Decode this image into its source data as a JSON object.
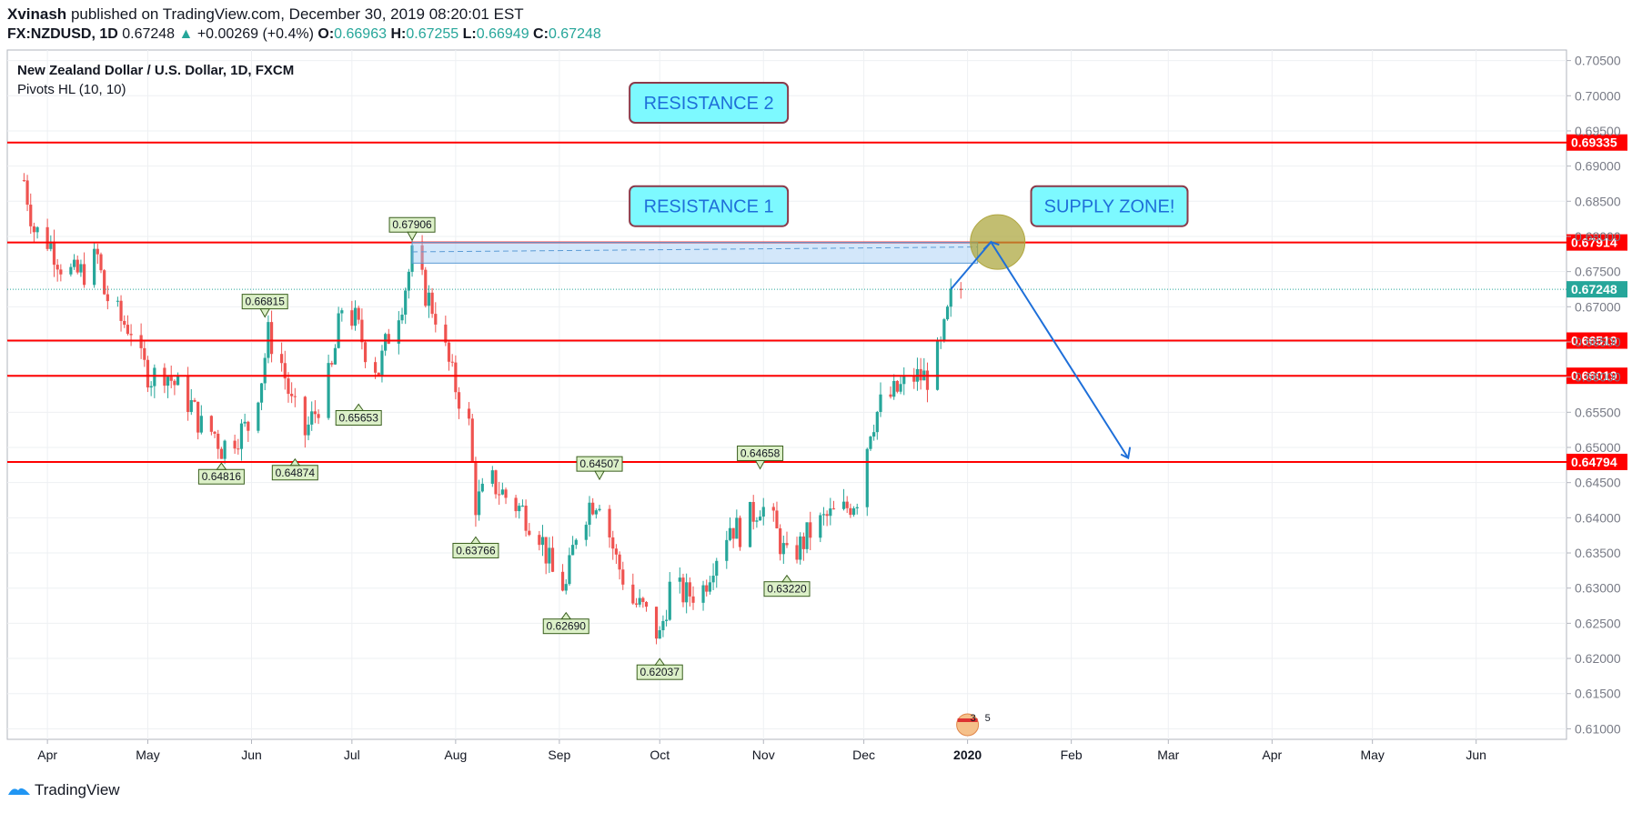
{
  "header": {
    "author": "Xvinash",
    "published": "published on TradingView.com, December 30, 2019 08:20:01 EST",
    "symbol": "FX:NZDUSD, 1D",
    "last": "0.67248",
    "change": "+0.00269 (+0.4%)",
    "o_label": "O:",
    "o": "0.66963",
    "h_label": "H:",
    "h": "0.67255",
    "l_label": "L:",
    "l": "0.66949",
    "c_label": "C:",
    "c": "0.67248"
  },
  "legend": {
    "title": "New Zealand Dollar / U.S. Dollar, 1D, FXCM",
    "indicator": "Pivots HL (10, 10)"
  },
  "footer": {
    "brand": "TradingView"
  },
  "colors": {
    "up": "#26a69a",
    "down": "#ef5350",
    "level": "#ff0000",
    "box": "#7df9ff",
    "arrow": "#1e6fd9"
  },
  "chart_data": {
    "type": "candlestick",
    "x_ticks": [
      "Apr",
      "May",
      "Jun",
      "Jul",
      "Aug",
      "Sep",
      "Oct",
      "Nov",
      "Dec",
      "2020",
      "Feb",
      "Mar",
      "Apr",
      "May",
      "Jun"
    ],
    "y_ticks": [
      "0.70500",
      "0.70000",
      "0.69500",
      "0.69000",
      "0.68500",
      "0.68000",
      "0.67500",
      "0.67000",
      "0.66500",
      "0.66000",
      "0.65500",
      "0.65000",
      "0.64500",
      "0.64000",
      "0.63500",
      "0.63000",
      "0.62500",
      "0.62000",
      "0.61500",
      "0.61000"
    ],
    "ylim": [
      0.6085,
      0.7065
    ],
    "last_price": "0.67248",
    "levels": [
      {
        "value": 0.69335,
        "label": "0.69335"
      },
      {
        "value": 0.67914,
        "label": "0.67914"
      },
      {
        "value": 0.66519,
        "label": "0.66519"
      },
      {
        "value": 0.66019,
        "label": "0.66019"
      },
      {
        "value": 0.64794,
        "label": "0.64794"
      }
    ],
    "pivots": [
      {
        "date": "2019-05-23",
        "value": 0.64816,
        "label": "0.64816",
        "kind": "low"
      },
      {
        "date": "2019-06-05",
        "value": 0.66815,
        "label": "0.66815",
        "kind": "high"
      },
      {
        "date": "2019-06-14",
        "value": 0.64874,
        "label": "0.64874",
        "kind": "low"
      },
      {
        "date": "2019-07-03",
        "value": 0.65653,
        "label": "0.65653",
        "kind": "low"
      },
      {
        "date": "2019-07-19",
        "value": 0.67906,
        "label": "0.67906",
        "kind": "high"
      },
      {
        "date": "2019-08-07",
        "value": 0.63766,
        "label": "0.63766",
        "kind": "low"
      },
      {
        "date": "2019-09-03",
        "value": 0.6269,
        "label": "0.62690",
        "kind": "low"
      },
      {
        "date": "2019-09-13",
        "value": 0.64507,
        "label": "0.64507",
        "kind": "high"
      },
      {
        "date": "2019-10-01",
        "value": 0.62037,
        "label": "0.62037",
        "kind": "low"
      },
      {
        "date": "2019-10-31",
        "value": 0.64658,
        "label": "0.64658",
        "kind": "high"
      },
      {
        "date": "2019-11-08",
        "value": 0.6322,
        "label": "0.63220",
        "kind": "low"
      }
    ],
    "annotations": [
      {
        "text": "RESISTANCE 2"
      },
      {
        "text": "RESISTANCE 1"
      },
      {
        "text": "SUPPLY ZONE!"
      }
    ],
    "events_badge": {
      "a": "3",
      "b": "5"
    },
    "close_path": [
      [
        "2019-03-25",
        0.688
      ],
      [
        "2019-03-28",
        0.681
      ],
      [
        "2019-04-02",
        0.679
      ],
      [
        "2019-04-05",
        0.676
      ],
      [
        "2019-04-09",
        0.6745
      ],
      [
        "2019-04-12",
        0.675
      ],
      [
        "2019-04-16",
        0.677
      ],
      [
        "2019-04-18",
        0.672
      ],
      [
        "2019-04-23",
        0.668
      ],
      [
        "2019-04-26",
        0.667
      ],
      [
        "2019-04-29",
        0.662
      ],
      [
        "2019-05-02",
        0.66
      ],
      [
        "2019-05-06",
        0.661
      ],
      [
        "2019-05-09",
        0.659
      ],
      [
        "2019-05-14",
        0.656
      ],
      [
        "2019-05-17",
        0.653
      ],
      [
        "2019-05-21",
        0.652
      ],
      [
        "2019-05-23",
        0.65
      ],
      [
        "2019-05-28",
        0.652
      ],
      [
        "2019-05-31",
        0.653
      ],
      [
        "2019-06-04",
        0.66
      ],
      [
        "2019-06-06",
        0.666
      ],
      [
        "2019-06-10",
        0.662
      ],
      [
        "2019-06-13",
        0.656
      ],
      [
        "2019-06-17",
        0.652
      ],
      [
        "2019-06-20",
        0.655
      ],
      [
        "2019-06-25",
        0.661
      ],
      [
        "2019-06-28",
        0.67
      ],
      [
        "2019-07-02",
        0.668
      ],
      [
        "2019-07-05",
        0.664
      ],
      [
        "2019-07-09",
        0.661
      ],
      [
        "2019-07-12",
        0.666
      ],
      [
        "2019-07-16",
        0.671
      ],
      [
        "2019-07-19",
        0.677
      ],
      [
        "2019-07-23",
        0.672
      ],
      [
        "2019-07-26",
        0.669
      ],
      [
        "2019-07-31",
        0.66
      ],
      [
        "2019-08-05",
        0.653
      ],
      [
        "2019-08-07",
        0.642
      ],
      [
        "2019-08-12",
        0.645
      ],
      [
        "2019-08-16",
        0.643
      ],
      [
        "2019-08-21",
        0.641
      ],
      [
        "2019-08-26",
        0.638
      ],
      [
        "2019-08-30",
        0.632
      ],
      [
        "2019-09-03",
        0.63
      ],
      [
        "2019-09-06",
        0.638
      ],
      [
        "2019-09-10",
        0.642
      ],
      [
        "2019-09-13",
        0.643
      ],
      [
        "2019-09-18",
        0.634
      ],
      [
        "2019-09-23",
        0.628
      ],
      [
        "2019-09-26",
        0.627
      ],
      [
        "2019-10-01",
        0.623
      ],
      [
        "2019-10-04",
        0.63
      ],
      [
        "2019-10-09",
        0.629
      ],
      [
        "2019-10-14",
        0.63
      ],
      [
        "2019-10-17",
        0.634
      ],
      [
        "2019-10-22",
        0.639
      ],
      [
        "2019-10-25",
        0.638
      ],
      [
        "2019-10-31",
        0.642
      ],
      [
        "2019-11-04",
        0.639
      ],
      [
        "2019-11-08",
        0.634
      ],
      [
        "2019-11-12",
        0.636
      ],
      [
        "2019-11-15",
        0.638
      ],
      [
        "2019-11-20",
        0.64
      ],
      [
        "2019-11-25",
        0.641
      ],
      [
        "2019-11-29",
        0.643
      ],
      [
        "2019-12-03",
        0.653
      ],
      [
        "2019-12-06",
        0.656
      ],
      [
        "2019-12-11",
        0.658
      ],
      [
        "2019-12-16",
        0.66
      ],
      [
        "2019-12-20",
        0.66
      ],
      [
        "2019-12-24",
        0.664
      ],
      [
        "2019-12-27",
        0.671
      ],
      [
        "2019-12-30",
        0.6725
      ]
    ],
    "xlim": [
      "2019-03-20",
      "2020-06-28"
    ]
  }
}
